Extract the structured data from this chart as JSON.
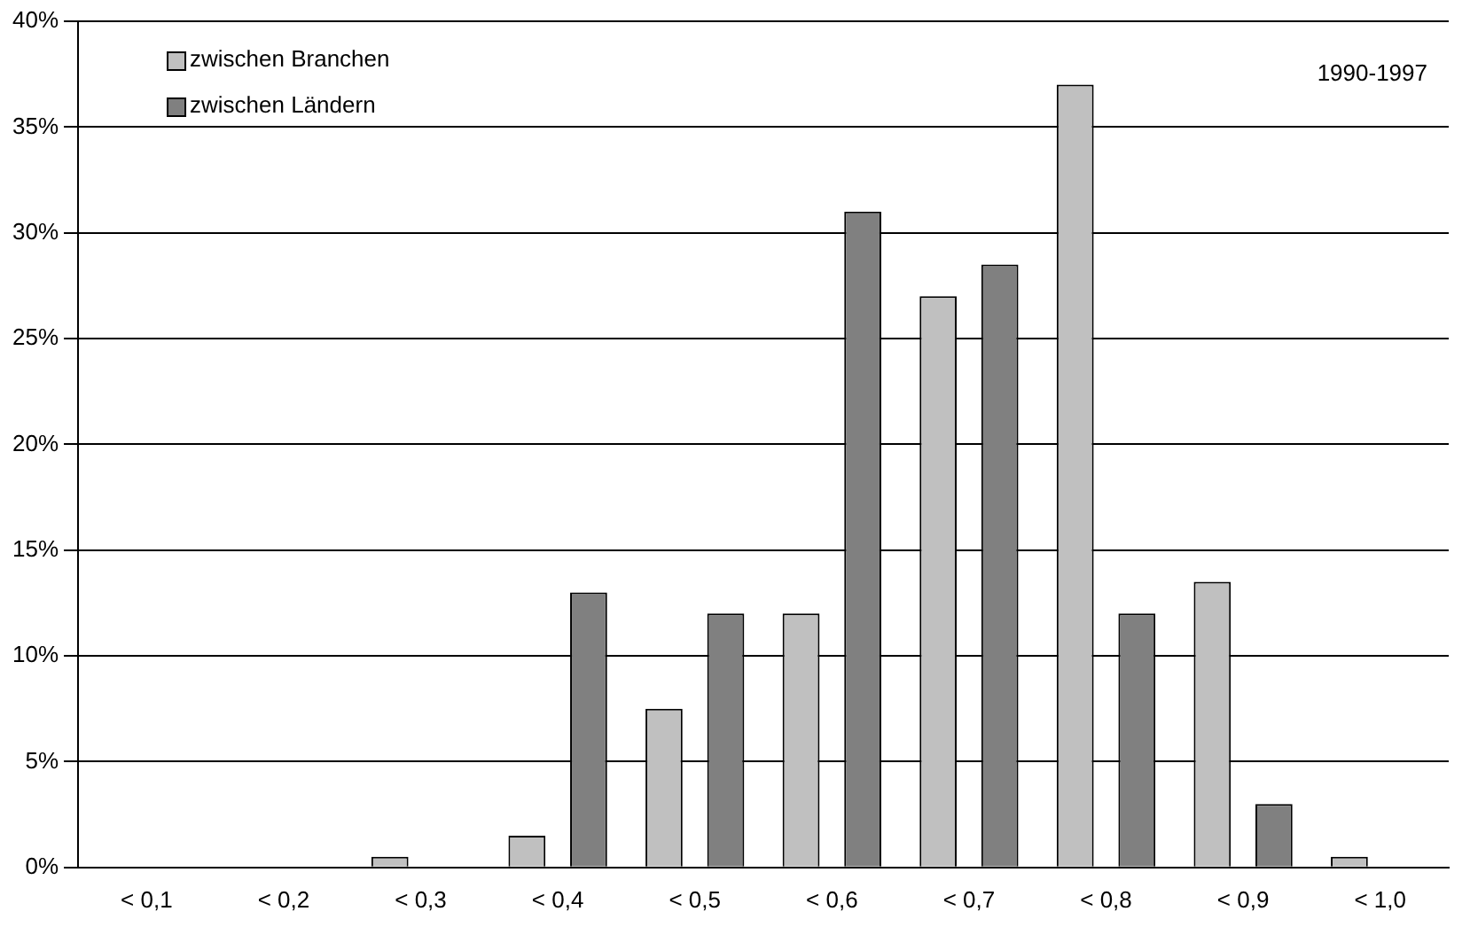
{
  "chart_data": {
    "type": "bar",
    "categories": [
      "< 0,1",
      "< 0,2",
      "< 0,3",
      "< 0,4",
      "< 0,5",
      "< 0,6",
      "< 0,7",
      "< 0,8",
      "< 0,9",
      "< 1,0"
    ],
    "series": [
      {
        "name": "zwischen Branchen",
        "color": "#c0c0c0",
        "values": [
          0,
          0,
          0.5,
          1.5,
          7.5,
          12,
          27,
          37,
          13.5,
          0.5
        ]
      },
      {
        "name": "zwischen Ländern",
        "color": "#808080",
        "values": [
          0,
          0,
          0,
          13,
          12,
          31,
          28.5,
          12,
          3,
          0
        ]
      }
    ],
    "ylim": [
      0,
      40
    ],
    "yticks": [
      {
        "value": 0,
        "label": "0%"
      },
      {
        "value": 5,
        "label": "5%"
      },
      {
        "value": 10,
        "label": "10%"
      },
      {
        "value": 15,
        "label": "15%"
      },
      {
        "value": 20,
        "label": "20%"
      },
      {
        "value": 25,
        "label": "25%"
      },
      {
        "value": 30,
        "label": "30%"
      },
      {
        "value": 35,
        "label": "35%"
      },
      {
        "value": 40,
        "label": "40%"
      }
    ],
    "grid": "y",
    "legend": "top left",
    "annotations": [
      "1990-1997"
    ]
  }
}
